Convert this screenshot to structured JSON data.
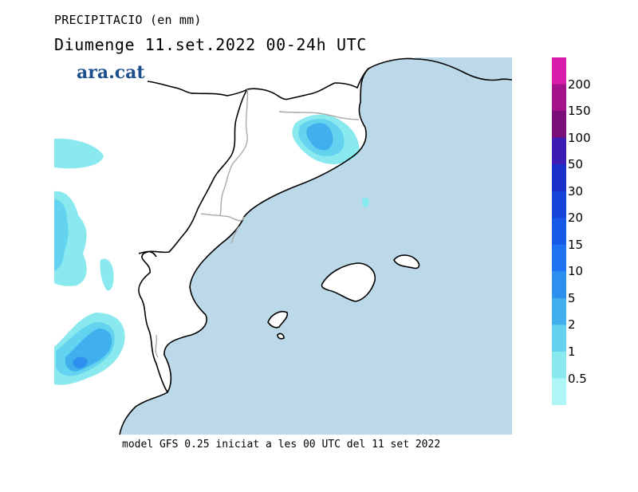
{
  "title": "PRECIPITACIO (en mm)",
  "subtitle": "Diumenge  11.set.2022 00-24h UTC",
  "logo": "ara.cat",
  "footer": "model GFS 0.25 iniciat a les 00 UTC del 11 set 2022",
  "legend": {
    "labels": [
      "200",
      "150",
      "100",
      "50",
      "30",
      "20",
      "15",
      "10",
      "5",
      "2",
      "1",
      "0.5"
    ],
    "colors": [
      "#d81ba8",
      "#a3118b",
      "#7a0f7c",
      "#3c1cb5",
      "#1b2fc9",
      "#1444d8",
      "#1659e6",
      "#1d73f2",
      "#2e90ee",
      "#3fb0ed",
      "#63d3ef",
      "#8ae9ee",
      "#aef7f6"
    ]
  },
  "colors": {
    "sea": "#bcd9ea",
    "land": "#ffffff",
    "border": "#aaaaaa"
  }
}
